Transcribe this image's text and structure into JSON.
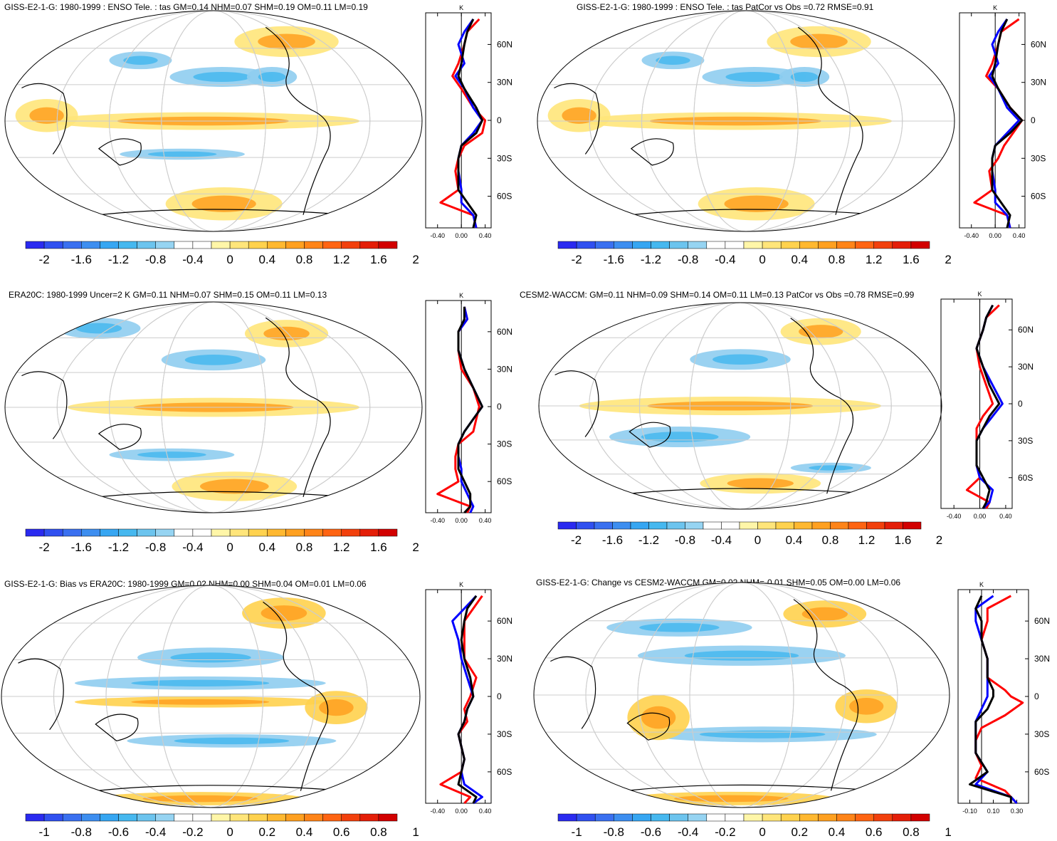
{
  "figure": {
    "colors": {
      "line_model": "#ff0000",
      "line_reference": "#0000ff",
      "line_black": "#000000",
      "map_border": "#000000",
      "graticule": "#cccccc",
      "colorbar": [
        "#2a2af0",
        "#3050f0",
        "#3a70f0",
        "#3d8ef0",
        "#36a6f2",
        "#46b8ef",
        "#6cc4ee",
        "#96d4f2",
        "#ffffff",
        "#ffffff",
        "#fff6a8",
        "#ffe57a",
        "#ffd24e",
        "#ffb830",
        "#ffa020",
        "#ff8418",
        "#ff6412",
        "#f2400c",
        "#e41e08",
        "#d20000"
      ]
    },
    "lat_labels": [
      "60N",
      "30N",
      "0",
      "30S",
      "60S"
    ],
    "profile_unit": "K",
    "panels": [
      {
        "id": "p1",
        "title": "GISS-E2-1-G: 1980-1999 : ENSO Tele. : tas GM=0.14 NHM=0.07 SHM=0.19 OM=0.11 LM=0.19",
        "colorbar_labels": [
          "-2",
          "-1.6",
          "-1.2",
          "-0.8",
          "-0.4",
          "0",
          "0.4",
          "0.8",
          "1.2",
          "1.6",
          "2"
        ],
        "profile_xticks": [
          "-0.40",
          "0.00",
          "0.40"
        ],
        "profile_xrange": [
          -0.6,
          0.5
        ]
      },
      {
        "id": "p2",
        "title": "GISS-E2-1-G: 1980-1999 : ENSO Tele. : tas PatCor vs Obs =0.72 RMSE=0.91",
        "colorbar_labels": [
          "-2",
          "-1.6",
          "-1.2",
          "-0.8",
          "-0.4",
          "0",
          "0.4",
          "0.8",
          "1.2",
          "1.6",
          "2"
        ],
        "profile_xticks": [
          "-0.40",
          "0.00",
          "0.40"
        ],
        "profile_xrange": [
          -0.6,
          0.5
        ]
      },
      {
        "id": "p3",
        "title": "ERA20C: 1980-1999 Uncer=2 K GM=0.11 NHM=0.07 SHM=0.15 OM=0.11 LM=0.13",
        "colorbar_labels": [
          "-2",
          "-1.6",
          "-1.2",
          "-0.8",
          "-0.4",
          "0",
          "0.4",
          "0.8",
          "1.2",
          "1.6",
          "2"
        ],
        "profile_xticks": [
          "-0.40",
          "0.00",
          "0.40"
        ],
        "profile_xrange": [
          -0.6,
          0.5
        ]
      },
      {
        "id": "p4",
        "title": "CESM2-WACCM: GM=0.11 NHM=0.09 SHM=0.14 OM=0.11 LM=0.13 PatCor vs Obs =0.78 RMSE=0.99",
        "colorbar_labels": [
          "-2",
          "-1.6",
          "-1.2",
          "-0.8",
          "-0.4",
          "0",
          "0.4",
          "0.8",
          "1.2",
          "1.6",
          "2"
        ],
        "profile_xticks": [
          "-0.40",
          "0.00",
          "0.40"
        ],
        "profile_xrange": [
          -0.6,
          0.5
        ]
      },
      {
        "id": "p5",
        "title": "GISS-E2-1-G: Bias vs ERA20C: 1980-1999 GM=0.02 NHM=0.00 SHM=0.04 OM=0.01 LM=0.06",
        "colorbar_labels": [
          "-1",
          "-0.8",
          "-0.6",
          "-0.4",
          "-0.2",
          "0",
          "0.2",
          "0.4",
          "0.6",
          "0.8",
          "1"
        ],
        "profile_xticks": [
          "-0.40",
          "0.00",
          "0.40"
        ],
        "profile_xrange": [
          -0.6,
          0.5
        ]
      },
      {
        "id": "p6",
        "title": "GISS-E2-1-G: Change vs CESM2-WACCM GM=0.02 NHM=-0.01 SHM=0.05 OM=0.00 LM=0.06",
        "colorbar_labels": [
          "-1",
          "-0.8",
          "-0.6",
          "-0.4",
          "-0.2",
          "0",
          "0.2",
          "0.4",
          "0.6",
          "0.8",
          "1"
        ],
        "profile_xticks": [
          "-0.10",
          "0.10",
          "0.30"
        ],
        "profile_xrange": [
          -0.2,
          0.4
        ]
      }
    ]
  }
}
